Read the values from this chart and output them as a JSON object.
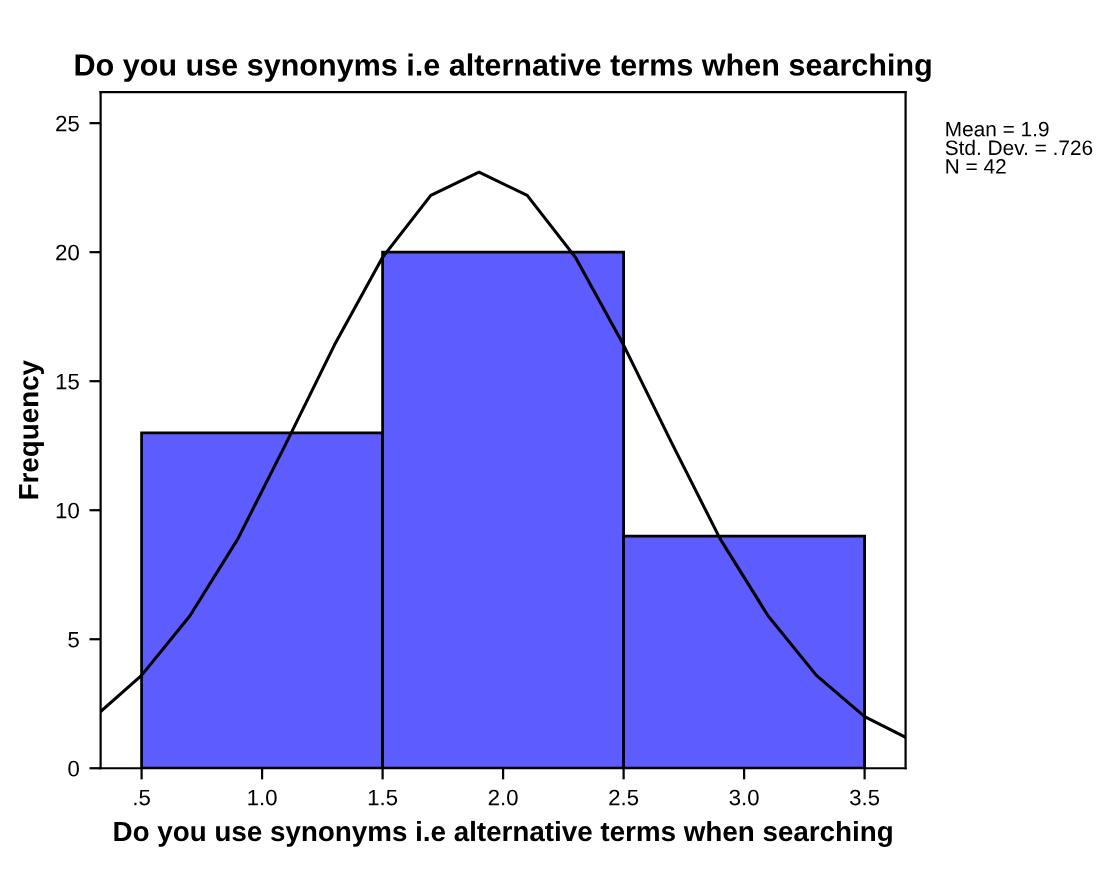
{
  "chart_data": {
    "type": "histogram",
    "title": "Do you use synonyms i.e alternative terms when searching",
    "xlabel": "Do you use synonyms i.e alternative terms when searching",
    "ylabel": "Frequency",
    "bins": [
      0.5,
      1.5,
      2.5,
      3.5
    ],
    "values": [
      13,
      20,
      9
    ],
    "color": "#5c5cff",
    "series": [
      {
        "type": "line",
        "color": "#000000",
        "x": [
          0.33,
          0.5,
          0.7,
          0.9,
          1.1,
          1.3,
          1.5,
          1.7,
          1.9,
          2.1,
          2.3,
          2.5,
          2.7,
          2.9,
          3.1,
          3.3,
          3.5,
          3.67
        ],
        "values": [
          2.2,
          3.6,
          5.9,
          8.9,
          12.6,
          16.4,
          19.8,
          22.2,
          23.1,
          22.2,
          19.8,
          16.4,
          12.6,
          8.9,
          5.9,
          3.6,
          2.0,
          1.2
        ]
      }
    ],
    "xlim": [
      0.33,
      3.67
    ],
    "ylim": [
      0,
      26.2
    ],
    "xticks": [
      {
        "value": 0.5,
        "label": ".5"
      },
      {
        "value": 1.0,
        "label": "1.0"
      },
      {
        "value": 1.5,
        "label": "1.5"
      },
      {
        "value": 2.0,
        "label": "2.0"
      },
      {
        "value": 2.5,
        "label": "2.5"
      },
      {
        "value": 3.0,
        "label": "3.0"
      },
      {
        "value": 3.5,
        "label": "3.5"
      }
    ],
    "yticks": [
      0,
      5,
      10,
      15,
      20,
      25
    ],
    "annotations": [
      "Mean = 1.9",
      "Std. Dev. = .726",
      "N = 42"
    ]
  }
}
